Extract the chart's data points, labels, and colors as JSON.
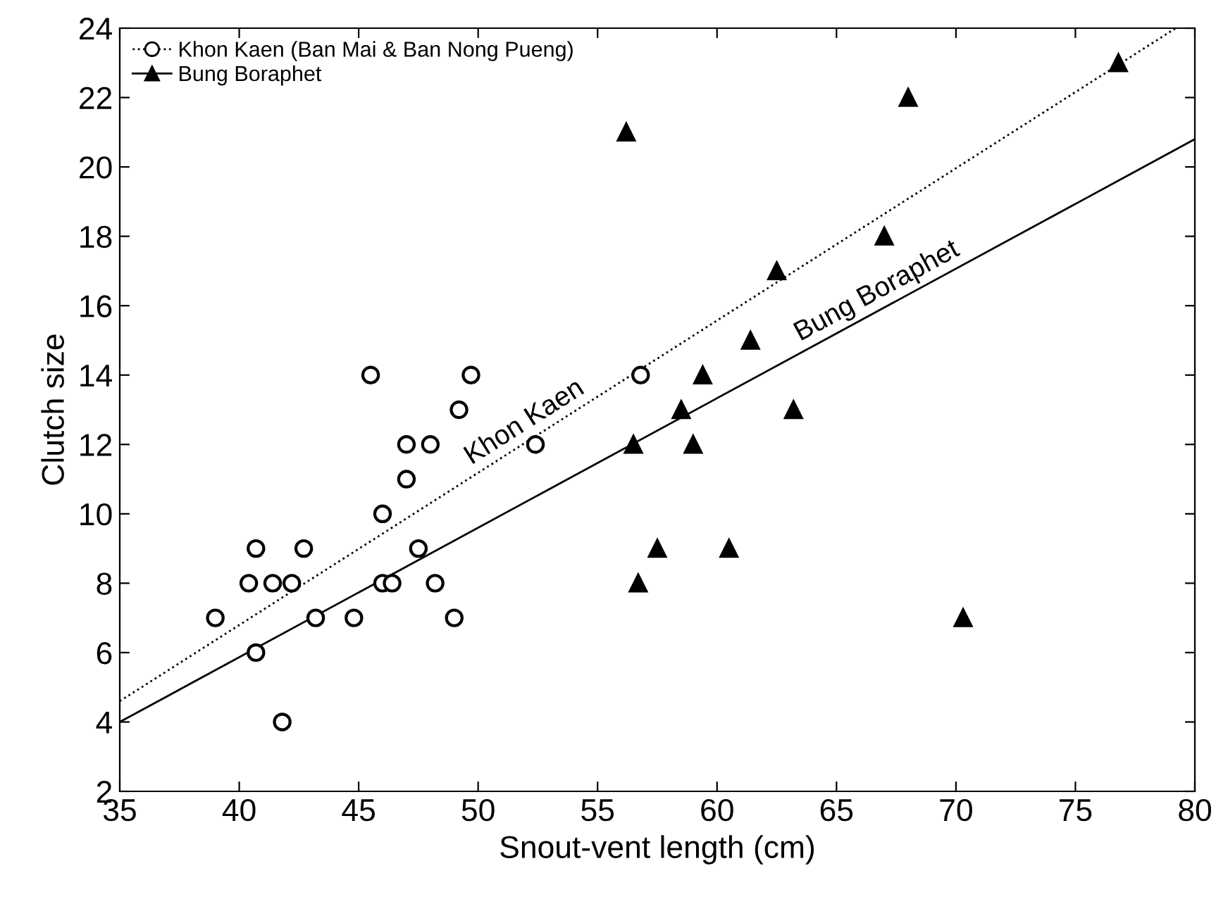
{
  "chart_data": {
    "type": "scatter",
    "xlabel": "Snout-vent length (cm)",
    "ylabel": "Clutch size",
    "xlim": [
      35,
      80
    ],
    "ylim": [
      2,
      24
    ],
    "xticks": [
      35,
      40,
      45,
      50,
      55,
      60,
      65,
      70,
      75,
      80
    ],
    "yticks": [
      2,
      4,
      6,
      8,
      10,
      12,
      14,
      16,
      18,
      20,
      22,
      24
    ],
    "grid": false,
    "legend": "top left",
    "series": [
      {
        "name": "Khon Kaen (Ban Mai & Ban Nong Pueng)",
        "color": "#000000",
        "marker": "circle",
        "x": [
          39.0,
          40.4,
          40.7,
          40.7,
          41.4,
          41.8,
          42.2,
          42.7,
          43.2,
          44.8,
          45.5,
          46.0,
          46.0,
          46.4,
          47.0,
          47.0,
          47.5,
          48.0,
          48.2,
          49.0,
          49.2,
          49.7,
          52.4,
          56.8
        ],
        "values": [
          7,
          8,
          9,
          6,
          8,
          4,
          8,
          9,
          7,
          7,
          14,
          10,
          8,
          8,
          12,
          11,
          9,
          12,
          8,
          7,
          13,
          14,
          12,
          14
        ]
      },
      {
        "name": "Bung Boraphet",
        "color": "#000000",
        "marker": "triangle",
        "x": [
          56.2,
          56.5,
          56.7,
          57.5,
          58.5,
          59.0,
          59.4,
          60.5,
          61.4,
          62.5,
          63.2,
          67.0,
          68.0,
          70.3,
          76.8
        ],
        "values": [
          21,
          12,
          8,
          9,
          13,
          12,
          14,
          9,
          15,
          17,
          13,
          18,
          22,
          7,
          23
        ]
      },
      {
        "type": "line",
        "color": "#000000",
        "line_style": "dotted",
        "x": [
          35,
          79.2
        ],
        "values": [
          4.6,
          24
        ]
      },
      {
        "type": "line",
        "color": "#000000",
        "line_style": "solid",
        "x": [
          35,
          80
        ],
        "values": [
          4.0,
          20.8
        ]
      }
    ],
    "annotations": [
      "Khon Kaen",
      "Bung Boraphet"
    ]
  }
}
